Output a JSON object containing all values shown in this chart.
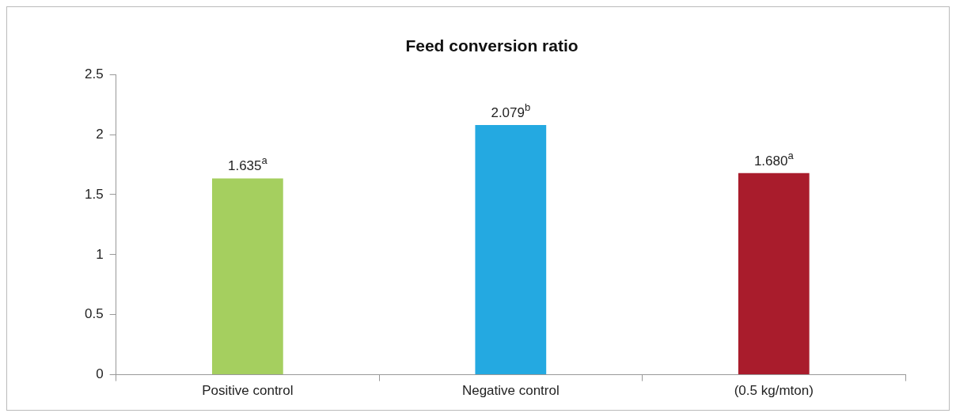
{
  "chart_data": {
    "type": "bar",
    "title": "Feed conversion ratio",
    "categories": [
      "Positive control",
      "Negative control",
      "(0.5 kg/mton)"
    ],
    "values": [
      1.635,
      2.079,
      1.68
    ],
    "colors": [
      "#a5cf5f",
      "#24a9e1",
      "#a91c2c"
    ],
    "value_labels": [
      "1.635$^{a}$",
      "2.079$^{b}$",
      "1.680$^{a}$"
    ],
    "ylim": [
      0,
      2.5
    ],
    "yticks": [
      0,
      0.5,
      1,
      1.5,
      2,
      2.5
    ],
    "grid": false,
    "legend": false
  }
}
